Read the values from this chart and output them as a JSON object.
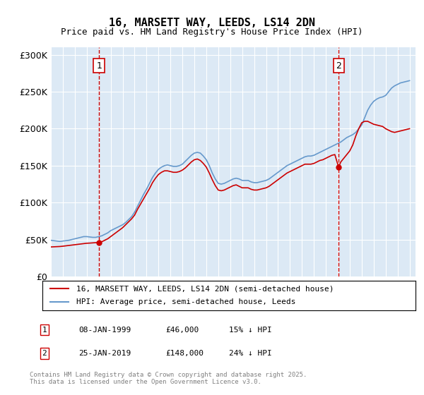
{
  "title": "16, MARSETT WAY, LEEDS, LS14 2DN",
  "subtitle": "Price paid vs. HM Land Registry's House Price Index (HPI)",
  "ylabel": "",
  "background_color": "#dce9f5",
  "plot_bg_color": "#dce9f5",
  "fig_bg_color": "#ffffff",
  "ylim": [
    0,
    310000
  ],
  "yticks": [
    0,
    50000,
    100000,
    150000,
    200000,
    250000,
    300000
  ],
  "ytick_labels": [
    "£0",
    "£50K",
    "£100K",
    "£150K",
    "£200K",
    "£250K",
    "£300K"
  ],
  "xmin": 1995.0,
  "xmax": 2025.5,
  "sale1_x": 1999.03,
  "sale1_y": 46000,
  "sale1_label": "1",
  "sale1_date": "08-JAN-1999",
  "sale1_price": "£46,000",
  "sale1_hpi": "15% ↓ HPI",
  "sale2_x": 2019.07,
  "sale2_y": 148000,
  "sale2_label": "2",
  "sale2_date": "25-JAN-2019",
  "sale2_price": "£148,000",
  "sale2_hpi": "24% ↓ HPI",
  "line_color_property": "#cc0000",
  "line_color_hpi": "#6699cc",
  "legend_label_property": "16, MARSETT WAY, LEEDS, LS14 2DN (semi-detached house)",
  "legend_label_hpi": "HPI: Average price, semi-detached house, Leeds",
  "footnote": "Contains HM Land Registry data © Crown copyright and database right 2025.\nThis data is licensed under the Open Government Licence v3.0.",
  "hpi_years": [
    1995.0,
    1995.25,
    1995.5,
    1995.75,
    1996.0,
    1996.25,
    1996.5,
    1996.75,
    1997.0,
    1997.25,
    1997.5,
    1997.75,
    1998.0,
    1998.25,
    1998.5,
    1998.75,
    1999.0,
    1999.25,
    1999.5,
    1999.75,
    2000.0,
    2000.25,
    2000.5,
    2000.75,
    2001.0,
    2001.25,
    2001.5,
    2001.75,
    2002.0,
    2002.25,
    2002.5,
    2002.75,
    2003.0,
    2003.25,
    2003.5,
    2003.75,
    2004.0,
    2004.25,
    2004.5,
    2004.75,
    2005.0,
    2005.25,
    2005.5,
    2005.75,
    2006.0,
    2006.25,
    2006.5,
    2006.75,
    2007.0,
    2007.25,
    2007.5,
    2007.75,
    2008.0,
    2008.25,
    2008.5,
    2008.75,
    2009.0,
    2009.25,
    2009.5,
    2009.75,
    2010.0,
    2010.25,
    2010.5,
    2010.75,
    2011.0,
    2011.25,
    2011.5,
    2011.75,
    2012.0,
    2012.25,
    2012.5,
    2012.75,
    2013.0,
    2013.25,
    2013.5,
    2013.75,
    2014.0,
    2014.25,
    2014.5,
    2014.75,
    2015.0,
    2015.25,
    2015.5,
    2015.75,
    2016.0,
    2016.25,
    2016.5,
    2016.75,
    2017.0,
    2017.25,
    2017.5,
    2017.75,
    2018.0,
    2018.25,
    2018.5,
    2018.75,
    2019.0,
    2019.25,
    2019.5,
    2019.75,
    2020.0,
    2020.25,
    2020.5,
    2020.75,
    2021.0,
    2021.25,
    2021.5,
    2021.75,
    2022.0,
    2022.25,
    2022.5,
    2022.75,
    2023.0,
    2023.25,
    2023.5,
    2023.75,
    2024.0,
    2024.25,
    2024.5,
    2024.75,
    2025.0
  ],
  "hpi_values": [
    49000,
    48500,
    48000,
    47500,
    48000,
    48500,
    49000,
    50000,
    51000,
    52000,
    53000,
    54000,
    54000,
    53500,
    53000,
    53000,
    54000,
    55000,
    57000,
    59000,
    62000,
    64000,
    66000,
    68000,
    70000,
    73000,
    77000,
    81000,
    87000,
    95000,
    103000,
    111000,
    118000,
    126000,
    134000,
    140000,
    145000,
    148000,
    150000,
    151000,
    150000,
    149000,
    149000,
    150000,
    152000,
    156000,
    160000,
    164000,
    167000,
    168000,
    167000,
    163000,
    158000,
    150000,
    140000,
    132000,
    126000,
    125000,
    126000,
    128000,
    130000,
    132000,
    133000,
    132000,
    130000,
    130000,
    130000,
    128000,
    127000,
    127000,
    128000,
    129000,
    130000,
    132000,
    135000,
    138000,
    141000,
    144000,
    147000,
    150000,
    152000,
    154000,
    156000,
    158000,
    160000,
    162000,
    163000,
    163000,
    164000,
    166000,
    168000,
    170000,
    172000,
    174000,
    176000,
    178000,
    180000,
    182000,
    185000,
    188000,
    190000,
    192000,
    195000,
    200000,
    205000,
    215000,
    225000,
    232000,
    237000,
    240000,
    242000,
    243000,
    245000,
    250000,
    255000,
    258000,
    260000,
    262000,
    263000,
    264000,
    265000
  ],
  "prop_years": [
    1995.0,
    1995.25,
    1995.5,
    1995.75,
    1996.0,
    1996.25,
    1996.5,
    1996.75,
    1997.0,
    1997.25,
    1997.5,
    1997.75,
    1998.0,
    1998.25,
    1998.5,
    1998.75,
    1999.03,
    1999.25,
    1999.5,
    1999.75,
    2000.0,
    2000.25,
    2000.5,
    2000.75,
    2001.0,
    2001.25,
    2001.5,
    2001.75,
    2002.0,
    2002.25,
    2002.5,
    2002.75,
    2003.0,
    2003.25,
    2003.5,
    2003.75,
    2004.0,
    2004.25,
    2004.5,
    2004.75,
    2005.0,
    2005.25,
    2005.5,
    2005.75,
    2006.0,
    2006.25,
    2006.5,
    2006.75,
    2007.0,
    2007.25,
    2007.5,
    2007.75,
    2008.0,
    2008.25,
    2008.5,
    2008.75,
    2009.0,
    2009.25,
    2009.5,
    2009.75,
    2010.0,
    2010.25,
    2010.5,
    2010.75,
    2011.0,
    2011.25,
    2011.5,
    2011.75,
    2012.0,
    2012.25,
    2012.5,
    2012.75,
    2013.0,
    2013.25,
    2013.5,
    2013.75,
    2014.0,
    2014.25,
    2014.5,
    2014.75,
    2015.0,
    2015.25,
    2015.5,
    2015.75,
    2016.0,
    2016.25,
    2016.5,
    2016.75,
    2017.0,
    2017.25,
    2017.5,
    2017.75,
    2018.0,
    2018.25,
    2018.5,
    2018.75,
    2019.07,
    2019.25,
    2019.5,
    2019.75,
    2020.0,
    2020.25,
    2020.5,
    2020.75,
    2021.0,
    2021.25,
    2021.5,
    2021.75,
    2022.0,
    2022.25,
    2022.5,
    2022.75,
    2023.0,
    2023.25,
    2023.5,
    2023.75,
    2024.0,
    2024.25,
    2024.5,
    2024.75,
    2025.0
  ],
  "prop_values": [
    40000,
    40200,
    40400,
    40600,
    41000,
    41500,
    42000,
    42500,
    43000,
    43500,
    44000,
    44500,
    45000,
    45200,
    45500,
    45800,
    46000,
    47000,
    49000,
    51000,
    54000,
    57000,
    60000,
    63000,
    66000,
    70000,
    74000,
    78000,
    83000,
    91000,
    98000,
    105000,
    112000,
    119000,
    127000,
    133000,
    138000,
    141000,
    143000,
    143000,
    142000,
    141000,
    141000,
    142000,
    144000,
    147000,
    151000,
    155000,
    158000,
    159000,
    157000,
    153000,
    148000,
    140000,
    131000,
    123000,
    117000,
    116000,
    117000,
    119000,
    121000,
    123000,
    124000,
    122000,
    120000,
    120000,
    120000,
    118000,
    117000,
    117000,
    118000,
    119000,
    120000,
    122000,
    125000,
    128000,
    131000,
    134000,
    137000,
    140000,
    142000,
    144000,
    146000,
    148000,
    150000,
    152000,
    152000,
    152000,
    153000,
    155000,
    157000,
    158000,
    160000,
    162000,
    164000,
    165000,
    148000,
    155000,
    160000,
    165000,
    170000,
    178000,
    190000,
    200000,
    208000,
    210000,
    210000,
    208000,
    206000,
    205000,
    204000,
    203000,
    200000,
    198000,
    196000,
    195000,
    196000,
    197000,
    198000,
    199000,
    200000
  ]
}
